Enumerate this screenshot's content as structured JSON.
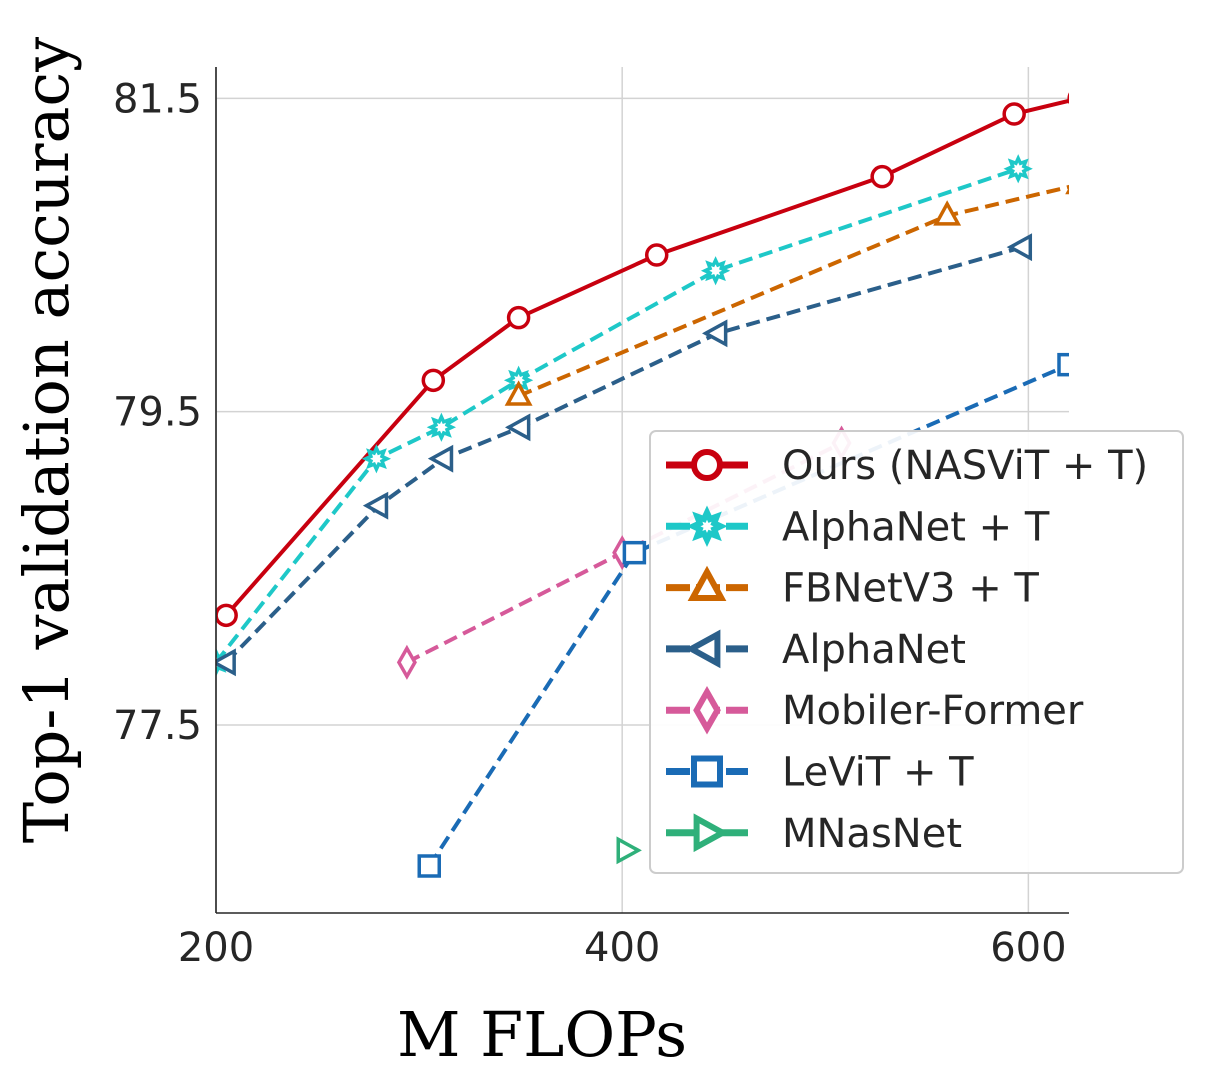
{
  "chart_data": {
    "type": "line",
    "title": "",
    "xlabel": "M FLOPs",
    "ylabel": "Top-1 validation accuracy",
    "xlim": [
      200,
      620
    ],
    "ylim": [
      76.3,
      81.7
    ],
    "xticks": [
      200,
      400,
      600
    ],
    "xtick_labels": [
      "200",
      "400",
      "600"
    ],
    "yticks": [
      77.5,
      79.5,
      81.5
    ],
    "ytick_labels": [
      "77.5",
      "79.5",
      "81.5"
    ],
    "grid": true,
    "legend_position": "center-right",
    "series": [
      {
        "name": "Ours (NASViT + T)",
        "color": "#c8000f",
        "dashed": false,
        "marker": "circle",
        "x": [
          205,
          307,
          349,
          417,
          528,
          593,
          625
        ],
        "y": [
          78.2,
          79.7,
          80.1,
          80.5,
          81.0,
          81.4,
          81.5
        ]
      },
      {
        "name": "AlphaNet + T",
        "color": "#1ec8c8",
        "dashed": true,
        "marker": "star",
        "x": [
          200,
          279,
          311,
          349,
          446,
          595
        ],
        "y": [
          77.9,
          79.2,
          79.4,
          79.7,
          80.4,
          81.05
        ]
      },
      {
        "name": "FBNetV3 + T",
        "color": "#cc6600",
        "dashed": true,
        "marker": "triangle-up",
        "x": [
          349,
          560,
          625
        ],
        "y": [
          79.6,
          80.75,
          80.95
        ]
      },
      {
        "name": "AlphaNet",
        "color": "#2b5f8a",
        "dashed": true,
        "marker": "triangle-left",
        "x": [
          205,
          280,
          312,
          350,
          447,
          597
        ],
        "y": [
          77.9,
          78.9,
          79.2,
          79.4,
          80.0,
          80.55
        ]
      },
      {
        "name": "Mobiler-Former",
        "color": "#d65a9a",
        "dashed": true,
        "marker": "diamond",
        "x": [
          294,
          400,
          508
        ],
        "y": [
          77.9,
          78.6,
          79.3
        ]
      },
      {
        "name": "LeViT + T",
        "color": "#1a6bb5",
        "dashed": true,
        "marker": "square",
        "x": [
          305,
          406,
          620
        ],
        "y": [
          76.6,
          78.6,
          79.8
        ]
      },
      {
        "name": "MNasNet",
        "color": "#2fb07a",
        "dashed": false,
        "marker": "triangle-right",
        "x": [
          402
        ],
        "y": [
          76.7
        ]
      }
    ]
  }
}
